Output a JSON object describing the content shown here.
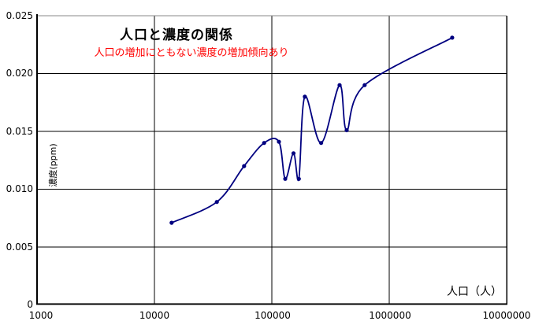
{
  "chart_data": {
    "type": "line",
    "title": "人口と濃度の関係",
    "subtitle": "人口の増加にともない濃度の増加傾向あり",
    "subtitle_color": "#ff0000",
    "xlabel": "人口（人）",
    "ylabel": "濃度(ppm)",
    "x_scale": "log",
    "xlim": [
      1000,
      10000000
    ],
    "ylim": [
      0,
      0.025
    ],
    "x_tick_values": [
      1000,
      10000,
      100000,
      1000000,
      10000000
    ],
    "x_tick_labels": [
      "1000",
      "10000",
      "100000",
      "1000000",
      "10000000"
    ],
    "y_tick_values": [
      0,
      0.005,
      0.01,
      0.015,
      0.02,
      0.025
    ],
    "y_tick_labels": [
      "0",
      "0.005",
      "0.010",
      "0.015",
      "0.020",
      "0.025"
    ],
    "grid": true,
    "grid_color": "#000000",
    "plot_top_border_color": "#888888",
    "line_color": "#000080",
    "marker_color": "#000080",
    "line_smoothed": true,
    "series": [
      {
        "name": "濃度",
        "x": [
          14000,
          34000,
          58000,
          86000,
          115000,
          130000,
          153000,
          170000,
          191000,
          263000,
          378000,
          434000,
          617000,
          3440000
        ],
        "y": [
          0.0071,
          0.0089,
          0.012,
          0.014,
          0.0141,
          0.0109,
          0.0131,
          0.0109,
          0.018,
          0.014,
          0.019,
          0.0151,
          0.019,
          0.0231
        ]
      }
    ]
  }
}
